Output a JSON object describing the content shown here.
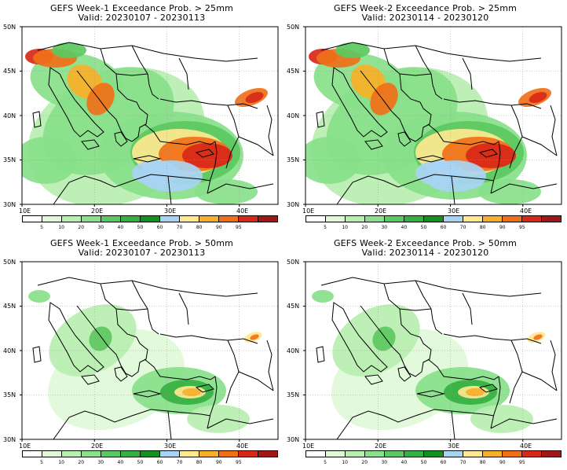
{
  "panels": [
    {
      "title": "GEFS Week-1 Exceedance Prob. > 25mm",
      "valid": "Valid: 20230107 - 20230113",
      "threshold": "25mm",
      "region": "east-med"
    },
    {
      "title": "GEFS Week-2 Exceedance Prob. > 25mm",
      "valid": "Valid: 20230114 - 20230120",
      "threshold": "25mm",
      "region": "east-med"
    },
    {
      "title": "GEFS Week-1 Exceedance Prob. > 50mm",
      "valid": "Valid: 20230107 - 20230113",
      "threshold": "50mm",
      "region": "east-med"
    },
    {
      "title": "GEFS Week-2 Exceedance Prob. > 50mm",
      "valid": "Valid: 20230114 - 20230120",
      "threshold": "50mm",
      "region": "east-med"
    }
  ],
  "axes": {
    "lat_labels": [
      "50N",
      "45N",
      "40N",
      "35N",
      "30N"
    ],
    "lon_labels": [
      "10E",
      "20E",
      "30E",
      "40E"
    ]
  },
  "colorbar": {
    "labels": [
      "5",
      "10",
      "20",
      "30",
      "40",
      "50",
      "60",
      "70",
      "80",
      "90",
      "95"
    ],
    "colors": [
      "#ffffff",
      "#e0f8d8",
      "#b8eeb0",
      "#88e08a",
      "#5cc860",
      "#36b040",
      "#14901e",
      "#a8d4f4",
      "#ffe890",
      "#f8b028",
      "#f07018",
      "#d82818",
      "#a01818"
    ]
  }
}
